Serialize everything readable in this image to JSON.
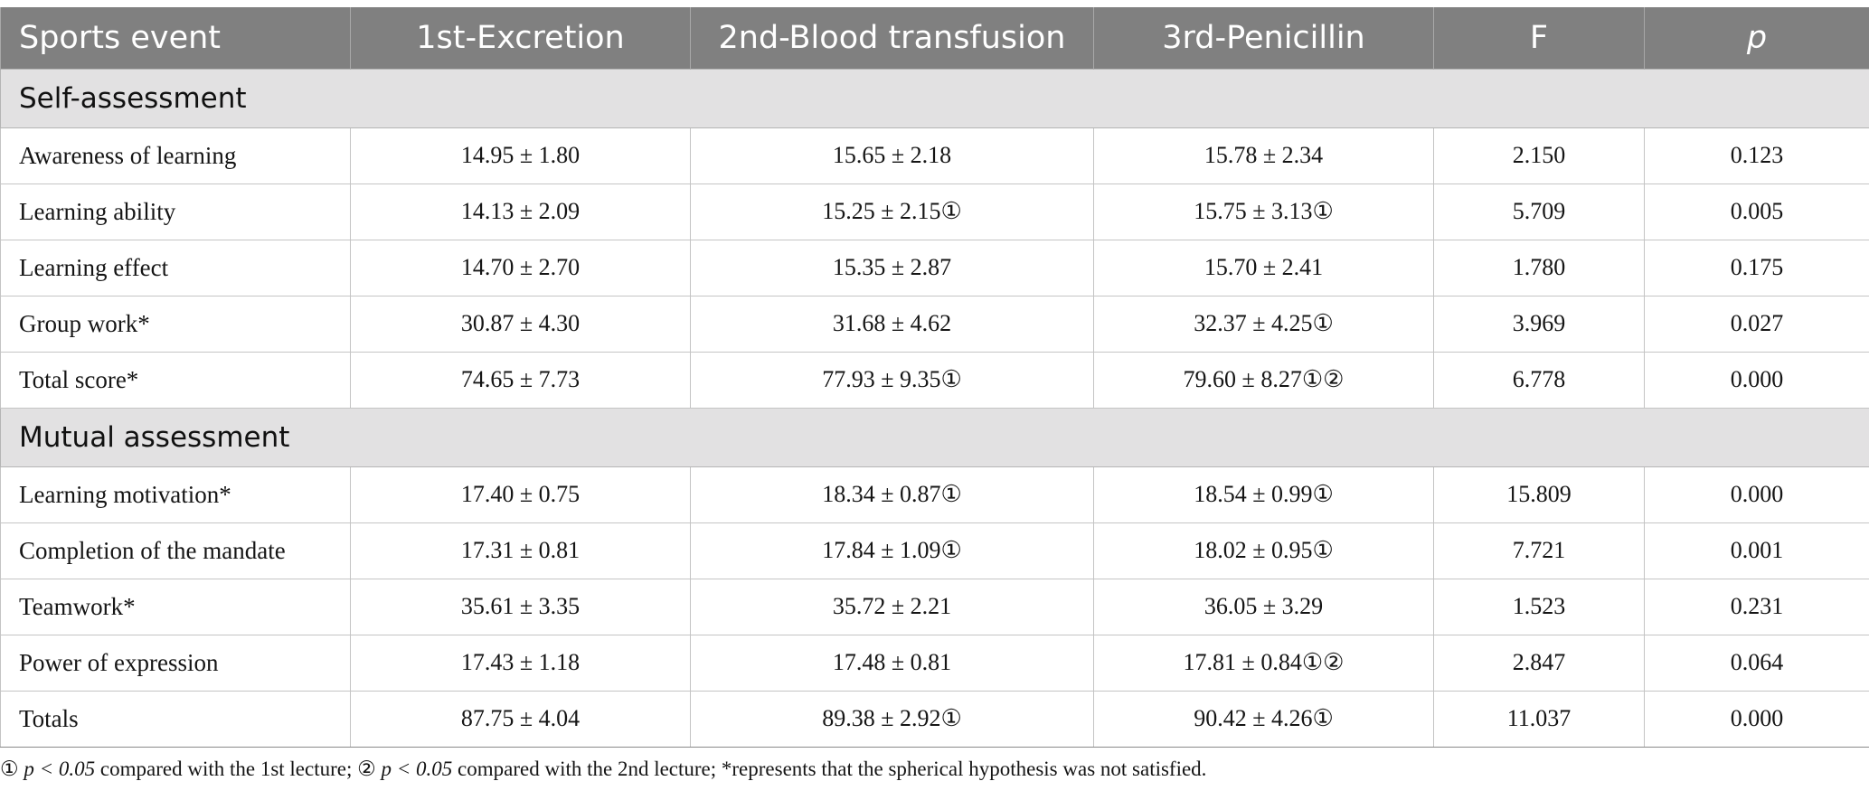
{
  "table": {
    "headers": [
      "Sports event",
      "1st-Excretion",
      "2nd-Blood transfusion",
      "3rd-Penicillin",
      "F",
      "p"
    ],
    "groups": [
      {
        "title": "Self-assessment",
        "rows": [
          {
            "label": "Awareness of learning",
            "cells": [
              "14.95 ± 1.80",
              "15.65 ± 2.18",
              "15.78 ± 2.34",
              "2.150",
              "0.123"
            ]
          },
          {
            "label": "Learning ability",
            "cells": [
              "14.13 ± 2.09",
              "15.25 ± 2.15①",
              "15.75 ± 3.13①",
              "5.709",
              "0.005"
            ]
          },
          {
            "label": "Learning effect",
            "cells": [
              "14.70 ± 2.70",
              "15.35 ± 2.87",
              "15.70 ± 2.41",
              "1.780",
              "0.175"
            ]
          },
          {
            "label": "Group work*",
            "cells": [
              "30.87 ± 4.30",
              "31.68 ± 4.62",
              "32.37 ± 4.25①",
              "3.969",
              "0.027"
            ]
          },
          {
            "label": "Total score*",
            "cells": [
              "74.65 ± 7.73",
              "77.93 ± 9.35①",
              "79.60 ± 8.27①②",
              "6.778",
              "0.000"
            ]
          }
        ]
      },
      {
        "title": "Mutual assessment",
        "rows": [
          {
            "label": "Learning motivation*",
            "cells": [
              "17.40 ± 0.75",
              "18.34 ± 0.87①",
              "18.54 ± 0.99①",
              "15.809",
              "0.000"
            ]
          },
          {
            "label": "Completion of the mandate",
            "cells": [
              "17.31 ± 0.81",
              "17.84 ± 1.09①",
              "18.02 ± 0.95①",
              "7.721",
              "0.001"
            ]
          },
          {
            "label": "Teamwork*",
            "cells": [
              "35.61 ± 3.35",
              "35.72 ± 2.21",
              "36.05 ± 3.29",
              "1.523",
              "0.231"
            ]
          },
          {
            "label": "Power of expression",
            "cells": [
              "17.43 ± 1.18",
              "17.48 ± 0.81",
              "17.81 ± 0.84①②",
              "2.847",
              "0.064"
            ]
          },
          {
            "label": "Totals",
            "cells": [
              "87.75 ± 4.04",
              "89.38 ± 2.92①",
              "90.42 ± 4.26①",
              "11.037",
              "0.000"
            ]
          }
        ]
      }
    ]
  },
  "footnote": {
    "m1": "①",
    "p1": "p < 0.05",
    "t1": " compared with the 1st lecture; ",
    "m2": "②",
    "p2": "p < 0.05",
    "t2": " compared with the 2nd lecture; *represents that the spherical hypothesis was not satisfied."
  }
}
